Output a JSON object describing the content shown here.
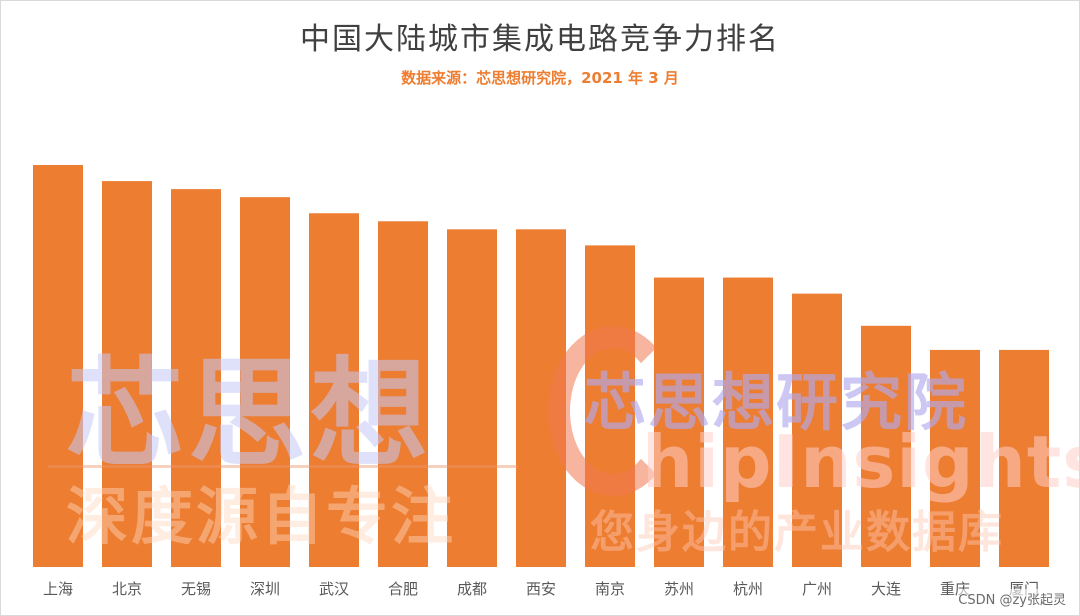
{
  "chart_data": {
    "type": "bar",
    "title": "中国大陆城市集成电路竞争力排名",
    "subtitle": "数据来源：芯思想研究院，2021 年 3 月",
    "categories": [
      "上海",
      "北京",
      "无锡",
      "深圳",
      "武汉",
      "合肥",
      "成都",
      "西安",
      "南京",
      "苏州",
      "杭州",
      "广州",
      "大连",
      "重庆",
      "厦门"
    ],
    "series": [
      {
        "values": [
          100,
          96,
          94,
          92,
          88,
          86,
          84,
          84,
          80,
          72,
          72,
          68,
          60,
          54,
          54
        ]
      }
    ],
    "ylim": [
      0,
      100
    ],
    "ylabel": "",
    "xlabel": "",
    "grid": false,
    "legend": "none",
    "bar_color": "#ed7d31"
  },
  "watermark": {
    "left_big": "芯思想",
    "left_small": "深度源自专注",
    "right_top": "芯思想研究院",
    "right_mid": "hipInsights",
    "right_bottom": "您身边的产业数据库"
  },
  "credit": "CSDN @zy张起灵"
}
